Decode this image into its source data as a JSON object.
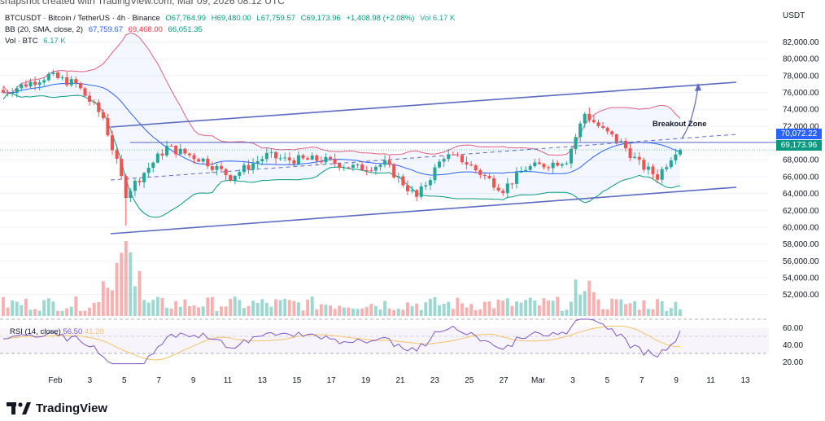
{
  "header": {
    "top_text": "snapshot created with TradingView.com, Mar 09, 2026 08:12 UTC",
    "legend_symbol": "BTCUSDT · Bitcoin / TetherUS · 4h · Binance",
    "legend_o": "O67,764.99",
    "legend_h": "H69,480.00",
    "legend_l": "L67,759.57",
    "legend_c": "C69,173.96",
    "legend_change": "+1,408.98 (+2.08%)",
    "legend_vol": "Vol 6.17 K",
    "bb_label": "BB (20, SMA, close, 2)",
    "bb_basis": "67,759.67",
    "bb_upper": "69,468.00",
    "bb_lower": "66,051.35",
    "vol_label": "Vol · BTC",
    "vol_value": "6.17 K"
  },
  "price_axis": {
    "unit": "USDT",
    "ticks": [
      "82,000.00",
      "80,000.00",
      "78,000.00",
      "76,000.00",
      "74,000.00",
      "72,000.00",
      "70,000.00",
      "68,000.00",
      "66,000.00",
      "64,000.00",
      "62,000.00",
      "60,000.00",
      "58,000.00",
      "56,000.00",
      "54,000.00",
      "52,000.00"
    ],
    "tag_resistance": "70,072.22",
    "tag_last": "69,173.96"
  },
  "rsi": {
    "label": "RSI (14, close)",
    "value": "56.50",
    "ma_value": "41.20",
    "ticks": [
      "60.00",
      "40.00",
      "20.00"
    ]
  },
  "time_axis": {
    "ticks": [
      "Feb",
      "3",
      "5",
      "7",
      "9",
      "11",
      "13",
      "15",
      "17",
      "19",
      "21",
      "23",
      "25",
      "27",
      "Mar",
      "3",
      "5",
      "7",
      "9",
      "11",
      "13"
    ]
  },
  "annotation": {
    "breakout": "Breakout Zone"
  },
  "brand": {
    "name": "TradingView"
  },
  "colors": {
    "up": "#26a69a",
    "down": "#ef5350",
    "bb_upper": "#e06080",
    "bb_basis": "#2962ff",
    "bb_lower": "#089981",
    "channel": "#5c6bc0",
    "rsi": "#7e57c2",
    "rsi_ma": "#f5c26b",
    "tag_blue": "#2962ff",
    "tag_teal": "#089981"
  },
  "chart_data": {
    "type": "candlestick",
    "timeframe": "4h",
    "symbol": "BTCUSDT",
    "y_range": [
      51000,
      83500
    ],
    "keypoints": [
      {
        "x": 0,
        "y": 76000
      },
      {
        "x": 10,
        "y": 78000
      },
      {
        "x": 16,
        "y": 77000
      },
      {
        "x": 22,
        "y": 73000
      },
      {
        "x": 27,
        "y": 64000
      },
      {
        "x": 31,
        "y": 66500
      },
      {
        "x": 36,
        "y": 69500
      },
      {
        "x": 44,
        "y": 68000
      },
      {
        "x": 50,
        "y": 66000
      },
      {
        "x": 58,
        "y": 68500
      },
      {
        "x": 62,
        "y": 68000
      },
      {
        "x": 70,
        "y": 68000
      },
      {
        "x": 78,
        "y": 67000
      },
      {
        "x": 84,
        "y": 67500
      },
      {
        "x": 91,
        "y": 63500
      },
      {
        "x": 97,
        "y": 68500
      },
      {
        "x": 101,
        "y": 68000
      },
      {
        "x": 106,
        "y": 66000
      },
      {
        "x": 110,
        "y": 64500
      },
      {
        "x": 115,
        "y": 67000
      },
      {
        "x": 120,
        "y": 67500
      },
      {
        "x": 124,
        "y": 68000
      },
      {
        "x": 128,
        "y": 73500
      },
      {
        "x": 132,
        "y": 71500
      },
      {
        "x": 136,
        "y": 70000
      },
      {
        "x": 140,
        "y": 67500
      },
      {
        "x": 144,
        "y": 66000
      },
      {
        "x": 148,
        "y": 69174
      }
    ],
    "resistance_level": 70072.22,
    "last_price": 69173.96
  }
}
